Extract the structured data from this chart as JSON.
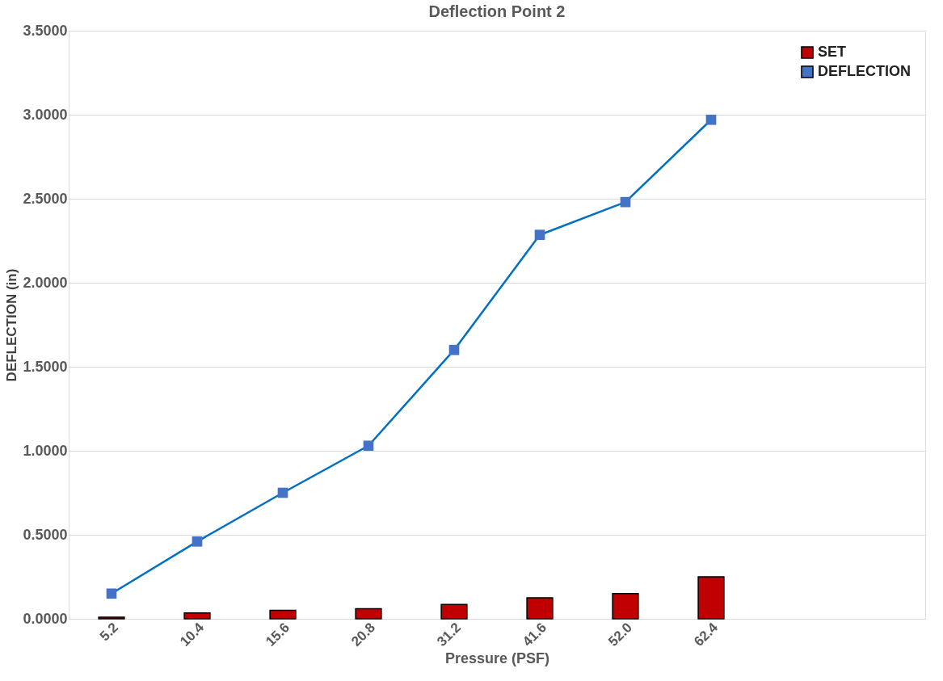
{
  "chart_data": {
    "type": "bar",
    "title": "Deflection Point 2",
    "xlabel": "Pressure (PSF)",
    "ylabel": "DEFLECTION (in)",
    "categories": [
      "5.2",
      "10.4",
      "15.6",
      "20.8",
      "31.2",
      "41.6",
      "52.0",
      "62.4",
      null,
      null
    ],
    "series": [
      {
        "name": "SET",
        "color": "#c00000",
        "values": [
          0.01,
          0.035,
          0.05,
          0.06,
          0.085,
          0.125,
          0.15,
          0.25,
          null,
          null
        ]
      },
      {
        "name": "DEFLECTION",
        "type": "line",
        "color": "#4472c4",
        "marker": "square",
        "values": [
          0.15,
          0.46,
          0.75,
          1.03,
          1.6,
          2.285,
          2.48,
          2.97,
          null,
          null
        ]
      }
    ],
    "ylim": [
      0,
      3.5
    ],
    "yticks": [
      {
        "value": 0,
        "label": "0.0000"
      },
      {
        "value": 0.5,
        "label": "0.5000"
      },
      {
        "value": 1,
        "label": "1.0000"
      },
      {
        "value": 1.5,
        "label": "1.5000"
      },
      {
        "value": 2,
        "label": "2.0000"
      },
      {
        "value": 2.5,
        "label": "2.5000"
      },
      {
        "value": 3,
        "label": "3.0000"
      },
      {
        "value": 3.5,
        "label": "3.5000"
      }
    ],
    "grid": "y",
    "legend": "top right"
  }
}
